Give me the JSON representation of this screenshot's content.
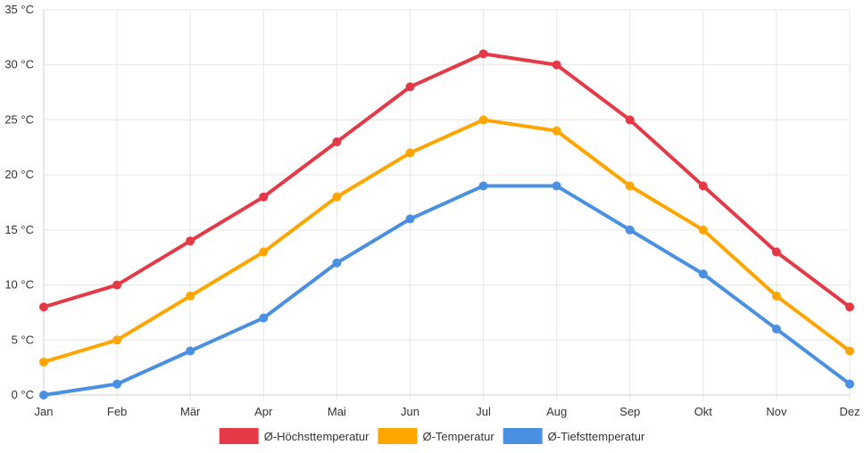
{
  "chart_data": {
    "type": "line",
    "categories": [
      "Jan",
      "Feb",
      "Mär",
      "Apr",
      "Mai",
      "Jun",
      "Jul",
      "Aug",
      "Sep",
      "Okt",
      "Nov",
      "Dez"
    ],
    "y_ticks": [
      "0 °C",
      "5 °C",
      "10 °C",
      "15 °C",
      "20 °C",
      "25 °C",
      "30 °C",
      "35 °C"
    ],
    "ylim": [
      0,
      35
    ],
    "grid": true,
    "legend_position": "bottom",
    "series": [
      {
        "name": "Ø-Höchsttemperatur",
        "color": "#e63946",
        "values": [
          8,
          10,
          14,
          18,
          23,
          28,
          31,
          30,
          25,
          19,
          13,
          8
        ]
      },
      {
        "name": "Ø-Temperatur",
        "color": "#ffa500",
        "values": [
          3,
          5,
          9,
          13,
          18,
          22,
          25,
          24,
          19,
          15,
          9,
          4
        ]
      },
      {
        "name": "Ø-Tiefsttemperatur",
        "color": "#4a90e2",
        "values": [
          0,
          1,
          4,
          7,
          12,
          16,
          19,
          19,
          15,
          11,
          6,
          1
        ]
      }
    ]
  }
}
